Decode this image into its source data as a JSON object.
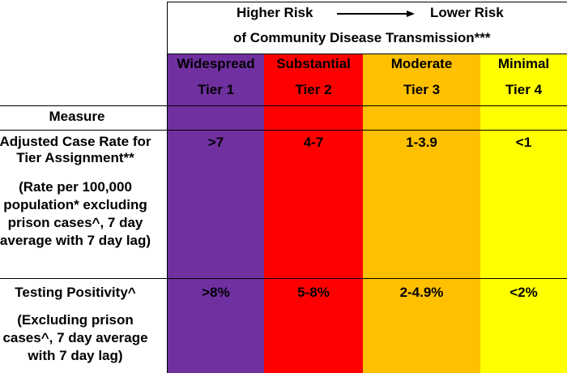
{
  "header": {
    "higher_risk": "Higher Risk",
    "lower_risk": "Lower Risk",
    "subtitle": "of Community Disease Transmission***"
  },
  "tiers": [
    {
      "name": "Widespread",
      "tier": "Tier 1",
      "color": "#7030a0",
      "case_rate": ">7",
      "positivity": ">8%"
    },
    {
      "name": "Substantial",
      "tier": "Tier 2",
      "color": "#ff0000",
      "case_rate": "4-7",
      "positivity": "5-8%"
    },
    {
      "name": "Moderate",
      "tier": "Tier 3",
      "color": "#ffc000",
      "case_rate": "1-3.9",
      "positivity": "2-4.9%"
    },
    {
      "name": "Minimal",
      "tier": "Tier 4",
      "color": "#ffff00",
      "case_rate": "<1",
      "positivity": "<2%"
    }
  ],
  "measure_label": "Measure",
  "rows": {
    "case_rate": {
      "title_lines": [
        "Adjusted Case Rate for",
        "Tier Assignment**"
      ],
      "note_lines": [
        "(Rate per 100,000",
        "population* excluding",
        "prison cases^, 7 day",
        "average with 7 day lag)"
      ]
    },
    "positivity": {
      "title": "Testing Positivity^",
      "note_lines": [
        "(Excluding prison",
        "cases^, 7 day average",
        "with 7 day lag)"
      ]
    }
  }
}
